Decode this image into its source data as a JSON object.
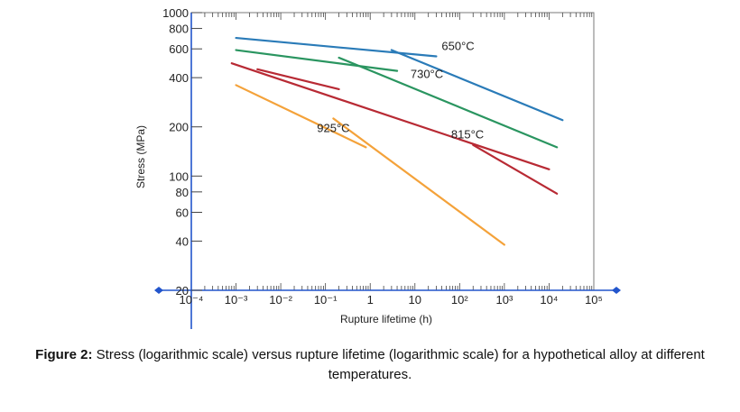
{
  "chart_data": {
    "type": "line",
    "xlabel": "Rupture lifetime (h)",
    "ylabel": "Stress (MPa)",
    "x_scale": "log",
    "y_scale": "log",
    "xlim": [
      0.0001,
      100000
    ],
    "ylim": [
      20,
      1000
    ],
    "x_ticks": [
      {
        "value": 0.0001,
        "label": "10⁻⁴"
      },
      {
        "value": 0.001,
        "label": "10⁻³"
      },
      {
        "value": 0.01,
        "label": "10⁻²"
      },
      {
        "value": 0.1,
        "label": "10⁻¹"
      },
      {
        "value": 1,
        "label": "1"
      },
      {
        "value": 10,
        "label": "10"
      },
      {
        "value": 100,
        "label": "10²"
      },
      {
        "value": 1000,
        "label": "10³"
      },
      {
        "value": 10000,
        "label": "10⁴"
      },
      {
        "value": 100000,
        "label": "10⁵"
      }
    ],
    "y_ticks": [
      {
        "value": 20,
        "label": "20"
      },
      {
        "value": 40,
        "label": "40"
      },
      {
        "value": 60,
        "label": "60"
      },
      {
        "value": 80,
        "label": "80"
      },
      {
        "value": 100,
        "label": "100"
      },
      {
        "value": 200,
        "label": "200"
      },
      {
        "value": 400,
        "label": "400"
      },
      {
        "value": 600,
        "label": "600"
      },
      {
        "value": 800,
        "label": "800"
      },
      {
        "value": 1000,
        "label": "1000"
      }
    ],
    "grid": false,
    "series": [
      {
        "name": "650°C",
        "color": "#2a7bb8",
        "lines": [
          {
            "x": [
              0.001,
              30
            ],
            "y": [
              700,
              540
            ]
          },
          {
            "x": [
              3,
              20000
            ],
            "y": [
              590,
              220
            ]
          }
        ]
      },
      {
        "name": "730°C",
        "color": "#2a9560",
        "lines": [
          {
            "x": [
              0.001,
              4
            ],
            "y": [
              590,
              440
            ]
          },
          {
            "x": [
              0.2,
              15000
            ],
            "y": [
              530,
              150
            ]
          }
        ]
      },
      {
        "name": "815°C",
        "color": "#b82a34",
        "lines": [
          {
            "x": [
              0.0008,
              10000
            ],
            "y": [
              490,
              110
            ]
          },
          {
            "x": [
              0.003,
              0.2
            ],
            "y": [
              450,
              340
            ]
          },
          {
            "x": [
              200,
              15000
            ],
            "y": [
              155,
              78
            ]
          }
        ]
      },
      {
        "name": "925°C",
        "color": "#f4a23a",
        "lines": [
          {
            "x": [
              0.001,
              0.8
            ],
            "y": [
              360,
              150
            ]
          },
          {
            "x": [
              0.15,
              1000
            ],
            "y": [
              225,
              38
            ]
          }
        ]
      }
    ]
  },
  "caption": {
    "bold": "Figure 2:",
    "text": " Stress (logarithmic scale) versus rupture lifetime (logarithmic scale) for a hypothetical alloy at different temperatures."
  }
}
